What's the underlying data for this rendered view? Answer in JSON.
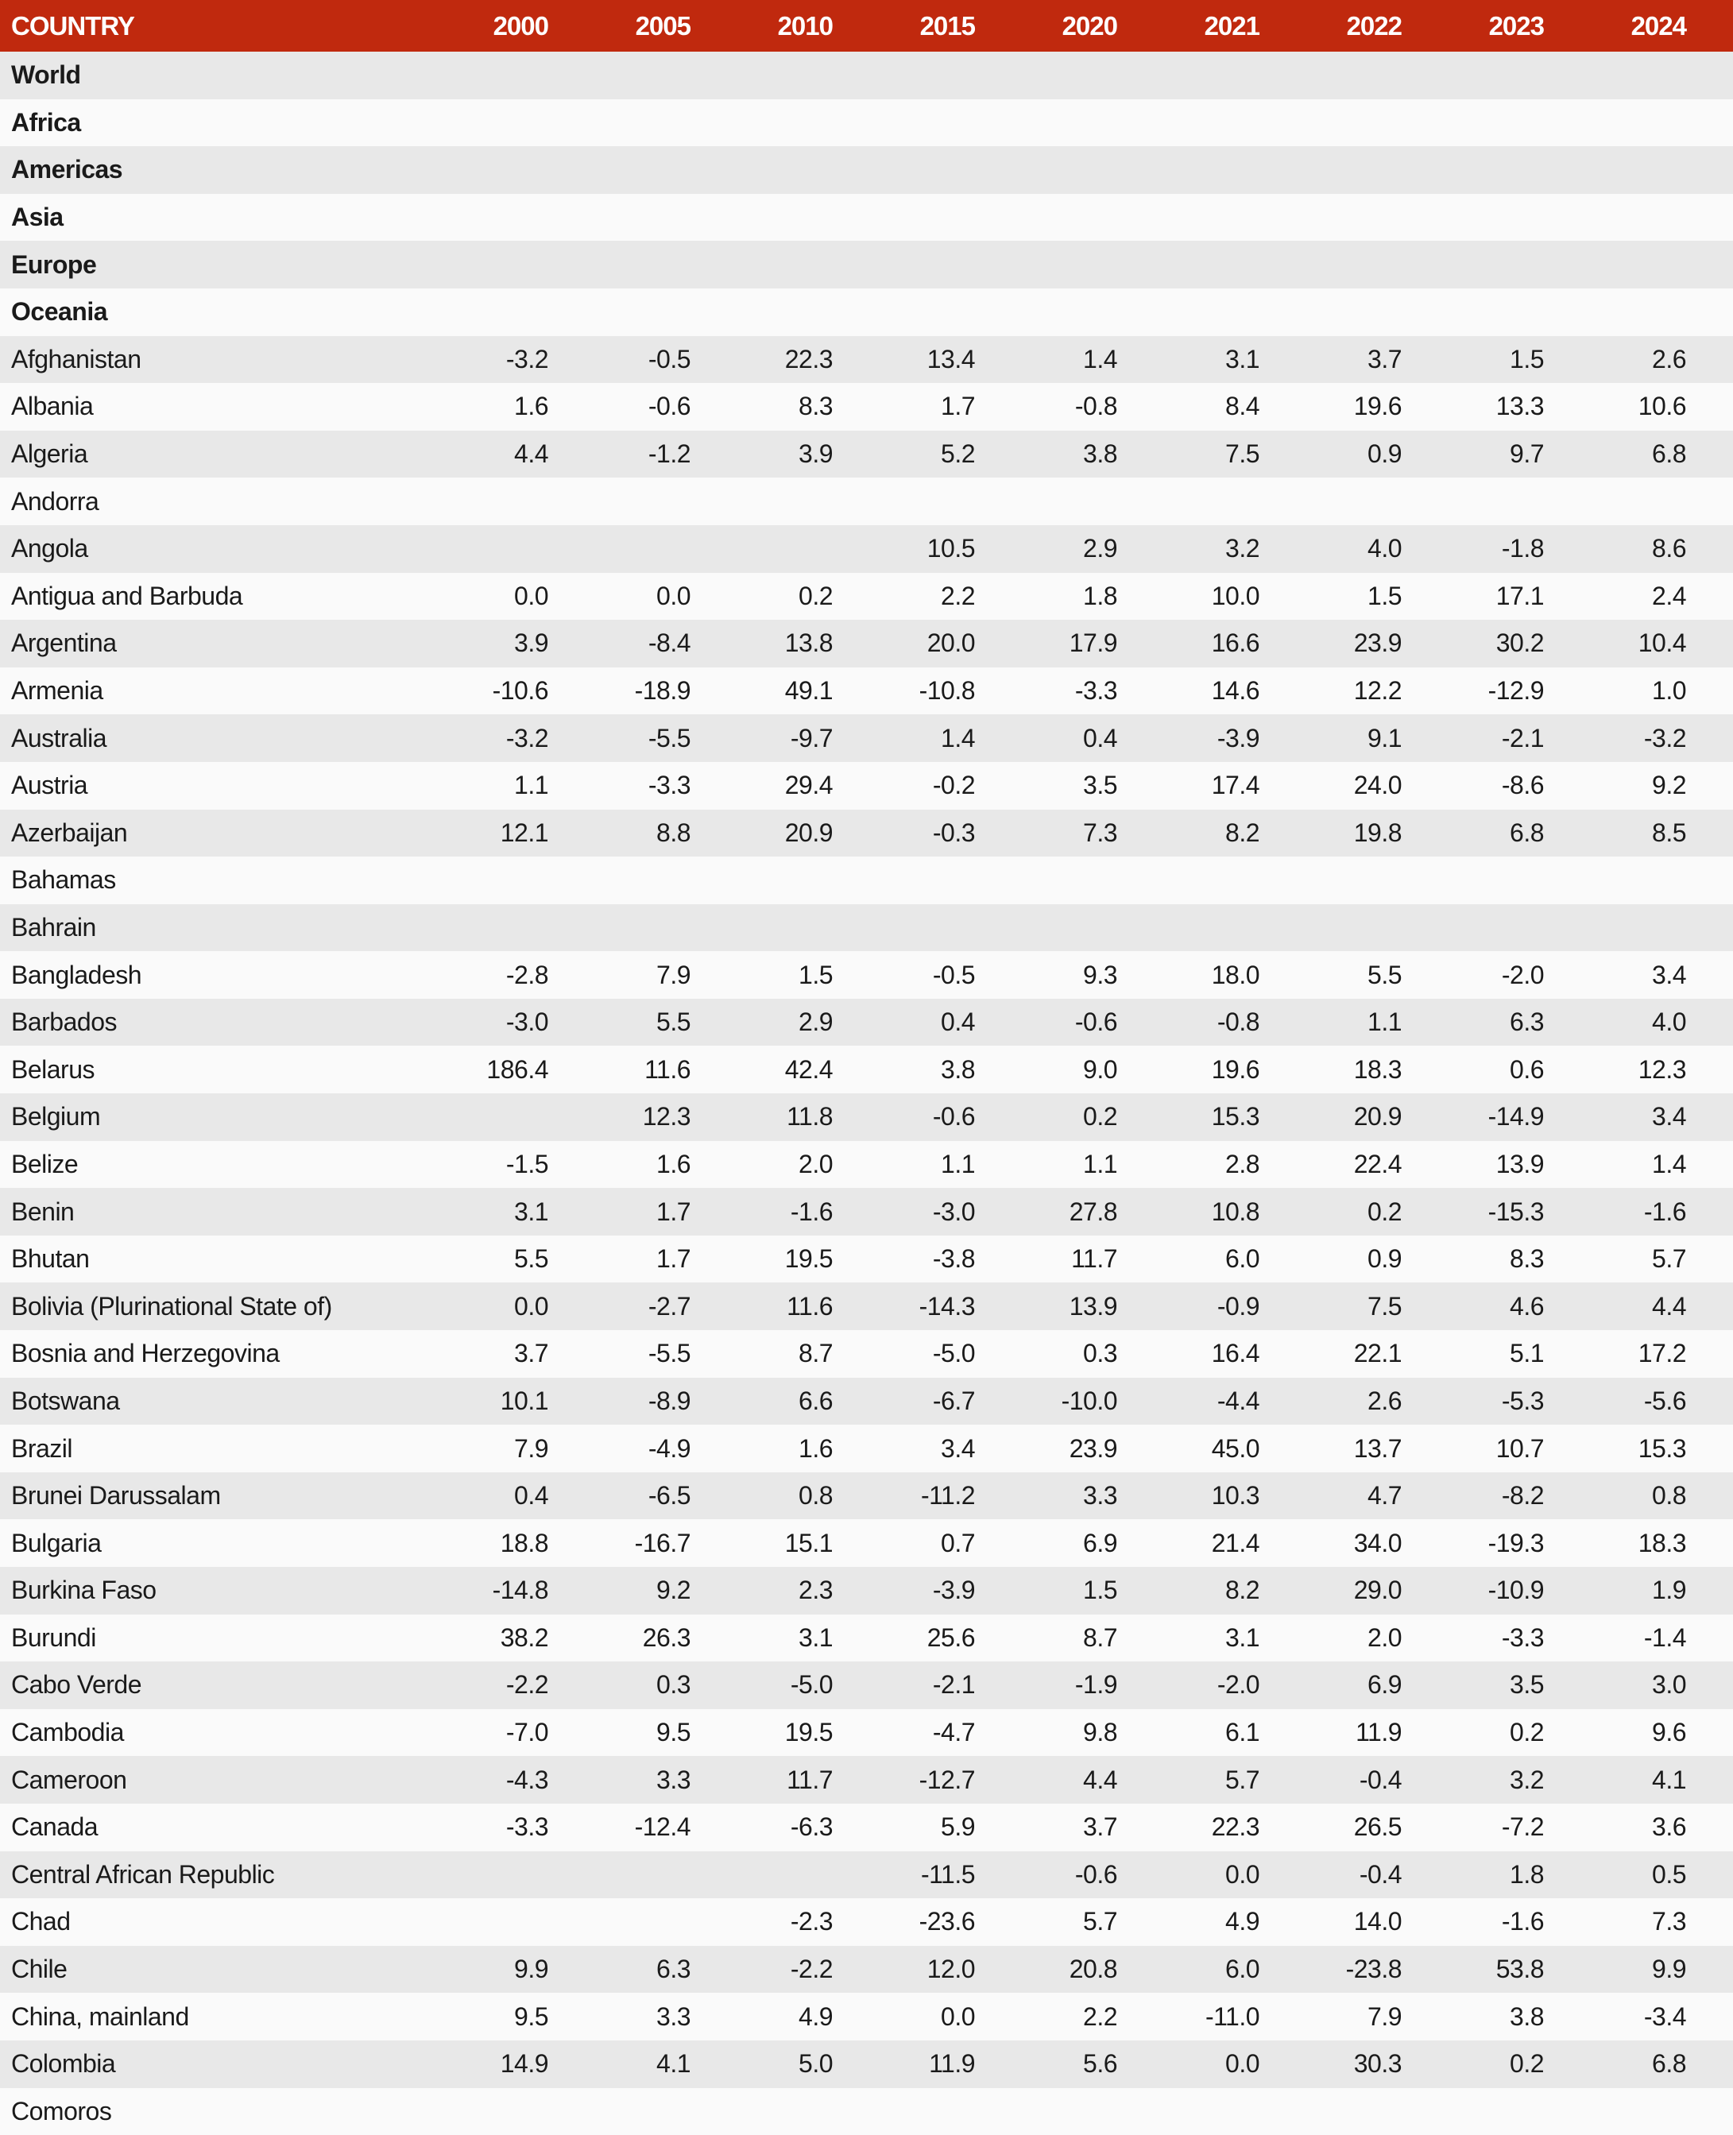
{
  "table": {
    "headers": [
      "COUNTRY",
      "2000",
      "2005",
      "2010",
      "2015",
      "2020",
      "2021",
      "2022",
      "2023",
      "2024"
    ],
    "rows": [
      {
        "name": "World",
        "region": true,
        "values": [
          "",
          "",
          "",
          "",
          "",
          "",
          "",
          "",
          ""
        ]
      },
      {
        "name": "Africa",
        "region": true,
        "values": [
          "",
          "",
          "",
          "",
          "",
          "",
          "",
          "",
          ""
        ]
      },
      {
        "name": "Americas",
        "region": true,
        "values": [
          "",
          "",
          "",
          "",
          "",
          "",
          "",
          "",
          ""
        ]
      },
      {
        "name": "Asia",
        "region": true,
        "values": [
          "",
          "",
          "",
          "",
          "",
          "",
          "",
          "",
          ""
        ]
      },
      {
        "name": "Europe",
        "region": true,
        "values": [
          "",
          "",
          "",
          "",
          "",
          "",
          "",
          "",
          ""
        ]
      },
      {
        "name": "Oceania",
        "region": true,
        "values": [
          "",
          "",
          "",
          "",
          "",
          "",
          "",
          "",
          ""
        ]
      },
      {
        "name": "Afghanistan",
        "values": [
          "-3.2",
          "-0.5",
          "22.3",
          "13.4",
          "1.4",
          "3.1",
          "3.7",
          "1.5",
          "2.6"
        ]
      },
      {
        "name": "Albania",
        "values": [
          "1.6",
          "-0.6",
          "8.3",
          "1.7",
          "-0.8",
          "8.4",
          "19.6",
          "13.3",
          "10.6"
        ]
      },
      {
        "name": "Algeria",
        "values": [
          "4.4",
          "-1.2",
          "3.9",
          "5.2",
          "3.8",
          "7.5",
          "0.9",
          "9.7",
          "6.8"
        ]
      },
      {
        "name": "Andorra",
        "values": [
          "",
          "",
          "",
          "",
          "",
          "",
          "",
          "",
          ""
        ]
      },
      {
        "name": "Angola",
        "values": [
          "",
          "",
          "",
          "10.5",
          "2.9",
          "3.2",
          "4.0",
          "-1.8",
          "8.6"
        ]
      },
      {
        "name": "Antigua and Barbuda",
        "values": [
          "0.0",
          "0.0",
          "0.2",
          "2.2",
          "1.8",
          "10.0",
          "1.5",
          "17.1",
          "2.4"
        ]
      },
      {
        "name": "Argentina",
        "values": [
          "3.9",
          "-8.4",
          "13.8",
          "20.0",
          "17.9",
          "16.6",
          "23.9",
          "30.2",
          "10.4"
        ]
      },
      {
        "name": "Armenia",
        "values": [
          "-10.6",
          "-18.9",
          "49.1",
          "-10.8",
          "-3.3",
          "14.6",
          "12.2",
          "-12.9",
          "1.0"
        ]
      },
      {
        "name": "Australia",
        "values": [
          "-3.2",
          "-5.5",
          "-9.7",
          "1.4",
          "0.4",
          "-3.9",
          "9.1",
          "-2.1",
          "-3.2"
        ]
      },
      {
        "name": "Austria",
        "values": [
          "1.1",
          "-3.3",
          "29.4",
          "-0.2",
          "3.5",
          "17.4",
          "24.0",
          "-8.6",
          "9.2"
        ]
      },
      {
        "name": "Azerbaijan",
        "values": [
          "12.1",
          "8.8",
          "20.9",
          "-0.3",
          "7.3",
          "8.2",
          "19.8",
          "6.8",
          "8.5"
        ]
      },
      {
        "name": "Bahamas",
        "values": [
          "",
          "",
          "",
          "",
          "",
          "",
          "",
          "",
          ""
        ]
      },
      {
        "name": "Bahrain",
        "values": [
          "",
          "",
          "",
          "",
          "",
          "",
          "",
          "",
          ""
        ]
      },
      {
        "name": "Bangladesh",
        "values": [
          "-2.8",
          "7.9",
          "1.5",
          "-0.5",
          "9.3",
          "18.0",
          "5.5",
          "-2.0",
          "3.4"
        ]
      },
      {
        "name": "Barbados",
        "values": [
          "-3.0",
          "5.5",
          "2.9",
          "0.4",
          "-0.6",
          "-0.8",
          "1.1",
          "6.3",
          "4.0"
        ]
      },
      {
        "name": "Belarus",
        "values": [
          "186.4",
          "11.6",
          "42.4",
          "3.8",
          "9.0",
          "19.6",
          "18.3",
          "0.6",
          "12.3"
        ]
      },
      {
        "name": "Belgium",
        "values": [
          "",
          "12.3",
          "11.8",
          "-0.6",
          "0.2",
          "15.3",
          "20.9",
          "-14.9",
          "3.4"
        ]
      },
      {
        "name": "Belize",
        "values": [
          "-1.5",
          "1.6",
          "2.0",
          "1.1",
          "1.1",
          "2.8",
          "22.4",
          "13.9",
          "1.4"
        ]
      },
      {
        "name": "Benin",
        "values": [
          "3.1",
          "1.7",
          "-1.6",
          "-3.0",
          "27.8",
          "10.8",
          "0.2",
          "-15.3",
          "-1.6"
        ]
      },
      {
        "name": "Bhutan",
        "values": [
          "5.5",
          "1.7",
          "19.5",
          "-3.8",
          "11.7",
          "6.0",
          "0.9",
          "8.3",
          "5.7"
        ]
      },
      {
        "name": "Bolivia (Plurinational State of)",
        "values": [
          "0.0",
          "-2.7",
          "11.6",
          "-14.3",
          "13.9",
          "-0.9",
          "7.5",
          "4.6",
          "4.4"
        ]
      },
      {
        "name": "Bosnia and Herzegovina",
        "values": [
          "3.7",
          "-5.5",
          "8.7",
          "-5.0",
          "0.3",
          "16.4",
          "22.1",
          "5.1",
          "17.2"
        ]
      },
      {
        "name": "Botswana",
        "values": [
          "10.1",
          "-8.9",
          "6.6",
          "-6.7",
          "-10.0",
          "-4.4",
          "2.6",
          "-5.3",
          "-5.6"
        ]
      },
      {
        "name": "Brazil",
        "values": [
          "7.9",
          "-4.9",
          "1.6",
          "3.4",
          "23.9",
          "45.0",
          "13.7",
          "10.7",
          "15.3"
        ]
      },
      {
        "name": "Brunei Darussalam",
        "values": [
          "0.4",
          "-6.5",
          "0.8",
          "-11.2",
          "3.3",
          "10.3",
          "4.7",
          "-8.2",
          "0.8"
        ]
      },
      {
        "name": "Bulgaria",
        "values": [
          "18.8",
          "-16.7",
          "15.1",
          "0.7",
          "6.9",
          "21.4",
          "34.0",
          "-19.3",
          "18.3"
        ]
      },
      {
        "name": "Burkina Faso",
        "values": [
          "-14.8",
          "9.2",
          "2.3",
          "-3.9",
          "1.5",
          "8.2",
          "29.0",
          "-10.9",
          "1.9"
        ]
      },
      {
        "name": "Burundi",
        "values": [
          "38.2",
          "26.3",
          "3.1",
          "25.6",
          "8.7",
          "3.1",
          "2.0",
          "-3.3",
          "-1.4"
        ]
      },
      {
        "name": "Cabo Verde",
        "values": [
          "-2.2",
          "0.3",
          "-5.0",
          "-2.1",
          "-1.9",
          "-2.0",
          "6.9",
          "3.5",
          "3.0"
        ]
      },
      {
        "name": "Cambodia",
        "values": [
          "-7.0",
          "9.5",
          "19.5",
          "-4.7",
          "9.8",
          "6.1",
          "11.9",
          "0.2",
          "9.6"
        ]
      },
      {
        "name": "Cameroon",
        "values": [
          "-4.3",
          "3.3",
          "11.7",
          "-12.7",
          "4.4",
          "5.7",
          "-0.4",
          "3.2",
          "4.1"
        ]
      },
      {
        "name": "Canada",
        "values": [
          "-3.3",
          "-12.4",
          "-6.3",
          "5.9",
          "3.7",
          "22.3",
          "26.5",
          "-7.2",
          "3.6"
        ]
      },
      {
        "name": "Central African Republic",
        "values": [
          "",
          "",
          "",
          "-11.5",
          "-0.6",
          "0.0",
          "-0.4",
          "1.8",
          "0.5"
        ]
      },
      {
        "name": "Chad",
        "values": [
          "",
          "",
          "-2.3",
          "-23.6",
          "5.7",
          "4.9",
          "14.0",
          "-1.6",
          "7.3"
        ]
      },
      {
        "name": "Chile",
        "values": [
          "9.9",
          "6.3",
          "-2.2",
          "12.0",
          "20.8",
          "6.0",
          "-23.8",
          "53.8",
          "9.9"
        ]
      },
      {
        "name": "China, mainland",
        "values": [
          "9.5",
          "3.3",
          "4.9",
          "0.0",
          "2.2",
          "-11.0",
          "7.9",
          "3.8",
          "-3.4"
        ]
      },
      {
        "name": "Colombia",
        "values": [
          "14.9",
          "4.1",
          "5.0",
          "11.9",
          "5.6",
          "0.0",
          "30.3",
          "0.2",
          "6.8"
        ]
      },
      {
        "name": "Comoros",
        "values": [
          "",
          "",
          "",
          "",
          "",
          "",
          "",
          "",
          ""
        ]
      }
    ]
  },
  "colors": {
    "header_bg": "#c0290e",
    "row_odd": "#e8e8e8",
    "row_even": "#fafafa"
  }
}
